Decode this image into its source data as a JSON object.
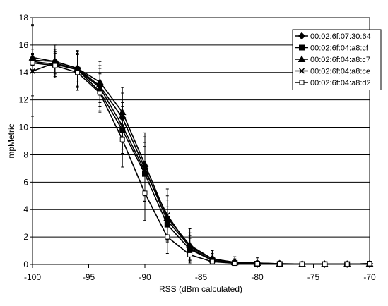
{
  "chart_data": {
    "type": "line",
    "title": "",
    "xlabel": "RSS (dBm calculated)",
    "ylabel": "mpMetric",
    "xlim": [
      -100,
      -70
    ],
    "ylim": [
      0,
      18
    ],
    "xticks": [
      -100,
      -95,
      -90,
      -85,
      -80,
      -75,
      -70
    ],
    "yticks": [
      0,
      2,
      4,
      6,
      8,
      10,
      12,
      14,
      16,
      18
    ],
    "x_tick_labels": [
      "-100",
      "-95",
      "-90",
      "-85",
      "-80",
      "-75",
      "-70"
    ],
    "y_tick_labels": [
      "0",
      "2",
      "4",
      "6",
      "8",
      "10",
      "12",
      "14",
      "16",
      "18"
    ],
    "grid": "horizontal",
    "legend_position": "top-right",
    "x": [
      -100,
      -98,
      -96,
      -94,
      -92,
      -90,
      -88,
      -86,
      -84,
      -82,
      -80,
      -78,
      -76,
      -74,
      -72,
      -70
    ],
    "series": [
      {
        "name": "00:02:6f:07:30:64",
        "marker": "diamond",
        "values": [
          14.9,
          14.8,
          14.3,
          13.0,
          10.7,
          7.0,
          3.2,
          1.3,
          0.4,
          0.15,
          0.1,
          0.05,
          0.03,
          0.02,
          0.02,
          0.05
        ],
        "errors": [
          2.6,
          1.2,
          1.0,
          1.5,
          1.8,
          2.3,
          1.5,
          1.0,
          0.6,
          0.4,
          0.4,
          0.2,
          0.1,
          0.05,
          0.05,
          0.1
        ]
      },
      {
        "name": "00:02:6f:04:a8:cf",
        "marker": "square",
        "values": [
          14.8,
          14.6,
          14.2,
          12.6,
          9.8,
          6.6,
          2.9,
          1.1,
          0.3,
          0.1,
          0.05,
          0.03,
          0.02,
          0.02,
          0.02,
          0.05
        ],
        "errors": [
          0.6,
          0.9,
          1.3,
          1.4,
          1.7,
          2.0,
          1.3,
          0.8,
          0.4,
          0.3,
          0.2,
          0.1,
          0.05,
          0.05,
          0.05,
          0.1
        ]
      },
      {
        "name": "00:02:6f:04:a8:c7",
        "marker": "triangle",
        "values": [
          15.1,
          14.8,
          14.3,
          13.3,
          11.1,
          7.3,
          3.4,
          1.4,
          0.4,
          0.15,
          0.1,
          0.05,
          0.03,
          0.02,
          0.02,
          0.05
        ],
        "errors": [
          0.6,
          0.9,
          1.3,
          1.5,
          1.8,
          2.3,
          1.6,
          1.2,
          0.6,
          0.4,
          0.3,
          0.15,
          0.1,
          0.05,
          0.05,
          0.1
        ]
      },
      {
        "name": "00:02:6f:04:a8:ce",
        "marker": "x",
        "values": [
          14.1,
          14.7,
          14.2,
          12.9,
          10.1,
          6.8,
          3.6,
          1.2,
          0.3,
          0.1,
          0.05,
          0.03,
          0.02,
          0.02,
          0.02,
          0.05
        ],
        "errors": [
          3.3,
          1.0,
          1.2,
          1.4,
          1.7,
          2.1,
          1.9,
          0.9,
          0.5,
          0.3,
          0.2,
          0.1,
          0.05,
          0.05,
          0.05,
          0.1
        ]
      },
      {
        "name": "00:02:6f:04:a8:d2",
        "marker": "open-square",
        "values": [
          14.7,
          14.5,
          14.0,
          12.5,
          9.1,
          5.2,
          2.0,
          0.7,
          0.2,
          0.08,
          0.05,
          0.03,
          0.02,
          0.02,
          0.02,
          0.05
        ],
        "errors": [
          0.6,
          0.9,
          1.3,
          1.4,
          2.0,
          2.0,
          1.2,
          0.6,
          0.4,
          0.25,
          0.2,
          0.1,
          0.05,
          0.05,
          0.05,
          0.1
        ]
      }
    ]
  }
}
